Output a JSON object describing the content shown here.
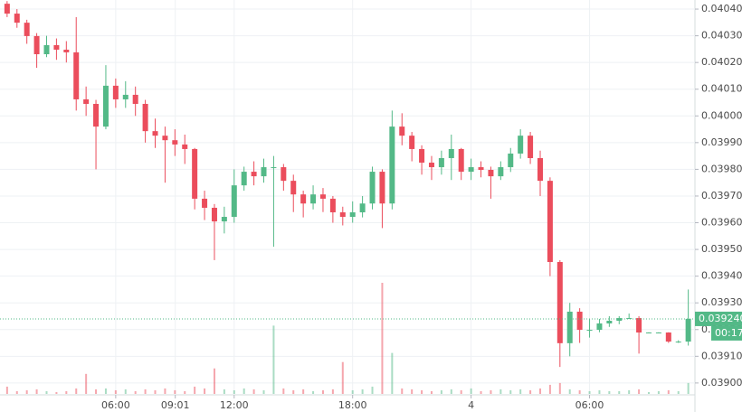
{
  "chart_data": {
    "type": "candlestick",
    "up_color": "#53b987",
    "down_color": "#eb4d5c",
    "grid": true,
    "xlim": [
      0.14,
      35.2
    ],
    "ylim": [
      0.038959,
      0.040434
    ],
    "xticks": [
      {
        "value": 6,
        "label": "06:00"
      },
      {
        "value": 9.0167,
        "label": "09:01"
      },
      {
        "value": 12,
        "label": "12:00"
      },
      {
        "value": 18,
        "label": "18:00"
      },
      {
        "value": 24,
        "label": "4"
      },
      {
        "value": 30,
        "label": "06:00"
      }
    ],
    "yticks": [
      {
        "value": 0.0404,
        "label": "0.040400"
      },
      {
        "value": 0.0403,
        "label": "0.040300"
      },
      {
        "value": 0.0402,
        "label": "0.040200"
      },
      {
        "value": 0.0401,
        "label": "0.040100"
      },
      {
        "value": 0.04,
        "label": "0.040000"
      },
      {
        "value": 0.0399,
        "label": "0.039900"
      },
      {
        "value": 0.0398,
        "label": "0.039800"
      },
      {
        "value": 0.0397,
        "label": "0.039700"
      },
      {
        "value": 0.0396,
        "label": "0.039600"
      },
      {
        "value": 0.0395,
        "label": "0.039500"
      },
      {
        "value": 0.0394,
        "label": "0.039400"
      },
      {
        "value": 0.0393,
        "label": "0.039300"
      },
      {
        "value": 0.0392,
        "label": "0.039200"
      },
      {
        "value": 0.0391,
        "label": "0.039100"
      },
      {
        "value": 0.039,
        "label": "0.039000"
      }
    ],
    "last_price": {
      "value": 0.03924,
      "label": "0.039240"
    },
    "countdown": "00:17",
    "x": [
      0.5,
      1,
      1.5,
      2,
      2.5,
      3,
      3.5,
      4,
      4.5,
      5,
      5.5,
      6,
      6.5,
      7,
      7.5,
      8,
      8.5,
      9,
      9.5,
      10,
      10.5,
      11,
      11.5,
      12,
      12.5,
      13,
      13.5,
      14,
      14.5,
      15,
      15.5,
      16,
      16.5,
      17,
      17.5,
      18,
      18.5,
      19,
      19.5,
      20,
      20.5,
      21,
      21.5,
      22,
      22.5,
      23,
      23.5,
      24,
      24.5,
      25,
      25.5,
      26,
      26.5,
      27,
      27.5,
      28,
      28.5,
      29,
      29.5,
      30,
      30.5,
      31,
      31.5,
      32,
      32.5,
      33,
      33.5,
      34,
      34.5,
      35
    ],
    "open": [
      0.04042,
      0.040383,
      0.040349,
      0.040299,
      0.040231,
      0.040265,
      0.040248,
      0.040238,
      0.040062,
      0.040045,
      0.03996,
      0.040113,
      0.040062,
      0.040079,
      0.040045,
      0.039943,
      0.039926,
      0.039909,
      0.039893,
      0.039876,
      0.03969,
      0.039656,
      0.039605,
      0.039622,
      0.03974,
      0.039791,
      0.039774,
      0.039808,
      0.039808,
      0.039757,
      0.039706,
      0.039672,
      0.039706,
      0.03969,
      0.039639,
      0.039622,
      0.039639,
      0.039672,
      0.039791,
      0.039672,
      0.03996,
      0.039926,
      0.039876,
      0.039825,
      0.039808,
      0.039842,
      0.039876,
      0.039791,
      0.039808,
      0.039798,
      0.039774,
      0.039808,
      0.039859,
      0.039926,
      0.039842,
      0.039757,
      0.039453,
      0.039149,
      0.039267,
      0.039199,
      0.039199,
      0.039223,
      0.039233,
      0.039243,
      0.039243,
      0.039189,
      0.039189,
      0.039189,
      0.039155,
      0.039155
    ],
    "high": [
      0.04043,
      0.0404,
      0.04036,
      0.04031,
      0.0403,
      0.04029,
      0.04028,
      0.04037,
      0.04011,
      0.04006,
      0.04019,
      0.04014,
      0.04013,
      0.04011,
      0.04006,
      0.03999,
      0.03996,
      0.03995,
      0.03993,
      0.03988,
      0.03972,
      0.03967,
      0.03966,
      0.0398,
      0.03981,
      0.03983,
      0.03984,
      0.03985,
      0.03982,
      0.03978,
      0.03972,
      0.03974,
      0.03973,
      0.0397,
      0.03966,
      0.03968,
      0.0397,
      0.03981,
      0.0398,
      0.04002,
      0.04001,
      0.03994,
      0.03989,
      0.03985,
      0.03987,
      0.03993,
      0.03988,
      0.03984,
      0.03983,
      0.03981,
      0.03983,
      0.03988,
      0.03995,
      0.03994,
      0.03987,
      0.03977,
      0.03946,
      0.0393,
      0.03928,
      0.03924,
      0.03924,
      0.03925,
      0.03925,
      0.03926,
      0.03925,
      0.03919,
      0.03919,
      0.03919,
      0.03916,
      0.03935
    ],
    "low": [
      0.04037,
      0.04033,
      0.04027,
      0.04018,
      0.04022,
      0.04021,
      0.0402,
      0.04002,
      0.04,
      0.0398,
      0.03995,
      0.04003,
      0.04003,
      0.04,
      0.0399,
      0.03988,
      0.03975,
      0.03985,
      0.03982,
      0.03965,
      0.03961,
      0.03946,
      0.03956,
      0.0396,
      0.03972,
      0.03974,
      0.03975,
      0.03951,
      0.03972,
      0.03964,
      0.03962,
      0.03965,
      0.03964,
      0.0396,
      0.03959,
      0.0396,
      0.03962,
      0.03965,
      0.03958,
      0.03965,
      0.03989,
      0.03983,
      0.03978,
      0.03976,
      0.03978,
      0.03976,
      0.03976,
      0.03976,
      0.03977,
      0.03969,
      0.03976,
      0.03979,
      0.03984,
      0.03982,
      0.0397,
      0.0394,
      0.03906,
      0.0391,
      0.03915,
      0.03917,
      0.03919,
      0.03921,
      0.03922,
      0.03924,
      0.03911,
      0.039189,
      0.039189,
      0.03915,
      0.03915,
      0.03914
    ],
    "close": [
      0.040383,
      0.040349,
      0.040299,
      0.040231,
      0.040265,
      0.040248,
      0.040238,
      0.040062,
      0.040045,
      0.03996,
      0.040113,
      0.040062,
      0.040079,
      0.040045,
      0.039943,
      0.039926,
      0.039909,
      0.039893,
      0.039876,
      0.03969,
      0.039656,
      0.039605,
      0.039622,
      0.03974,
      0.039791,
      0.039774,
      0.039808,
      0.039808,
      0.039757,
      0.039706,
      0.039672,
      0.039706,
      0.03969,
      0.039639,
      0.039622,
      0.039639,
      0.039672,
      0.039791,
      0.039672,
      0.03996,
      0.039926,
      0.039876,
      0.039825,
      0.039808,
      0.039842,
      0.039876,
      0.039791,
      0.039808,
      0.039798,
      0.039774,
      0.039808,
      0.039859,
      0.039926,
      0.039842,
      0.039757,
      0.039453,
      0.039149,
      0.039267,
      0.039199,
      0.039199,
      0.039223,
      0.039233,
      0.039243,
      0.039243,
      0.039189,
      0.039189,
      0.039189,
      0.039155,
      0.039155,
      0.03924
    ],
    "volume": [
      8,
      3,
      4,
      5,
      3,
      2,
      3,
      6,
      22,
      5,
      6,
      4,
      5,
      3,
      5,
      4,
      6,
      4,
      3,
      8,
      6,
      28,
      5,
      4,
      6,
      5,
      4,
      75,
      6,
      4,
      5,
      3,
      4,
      5,
      35,
      4,
      5,
      8,
      122,
      45,
      6,
      5,
      4,
      3,
      4,
      5,
      4,
      6,
      3,
      4,
      5,
      4,
      5,
      4,
      6,
      10,
      12,
      5,
      4,
      3,
      4,
      3,
      3,
      4,
      5,
      2,
      3,
      4,
      3,
      12
    ]
  }
}
